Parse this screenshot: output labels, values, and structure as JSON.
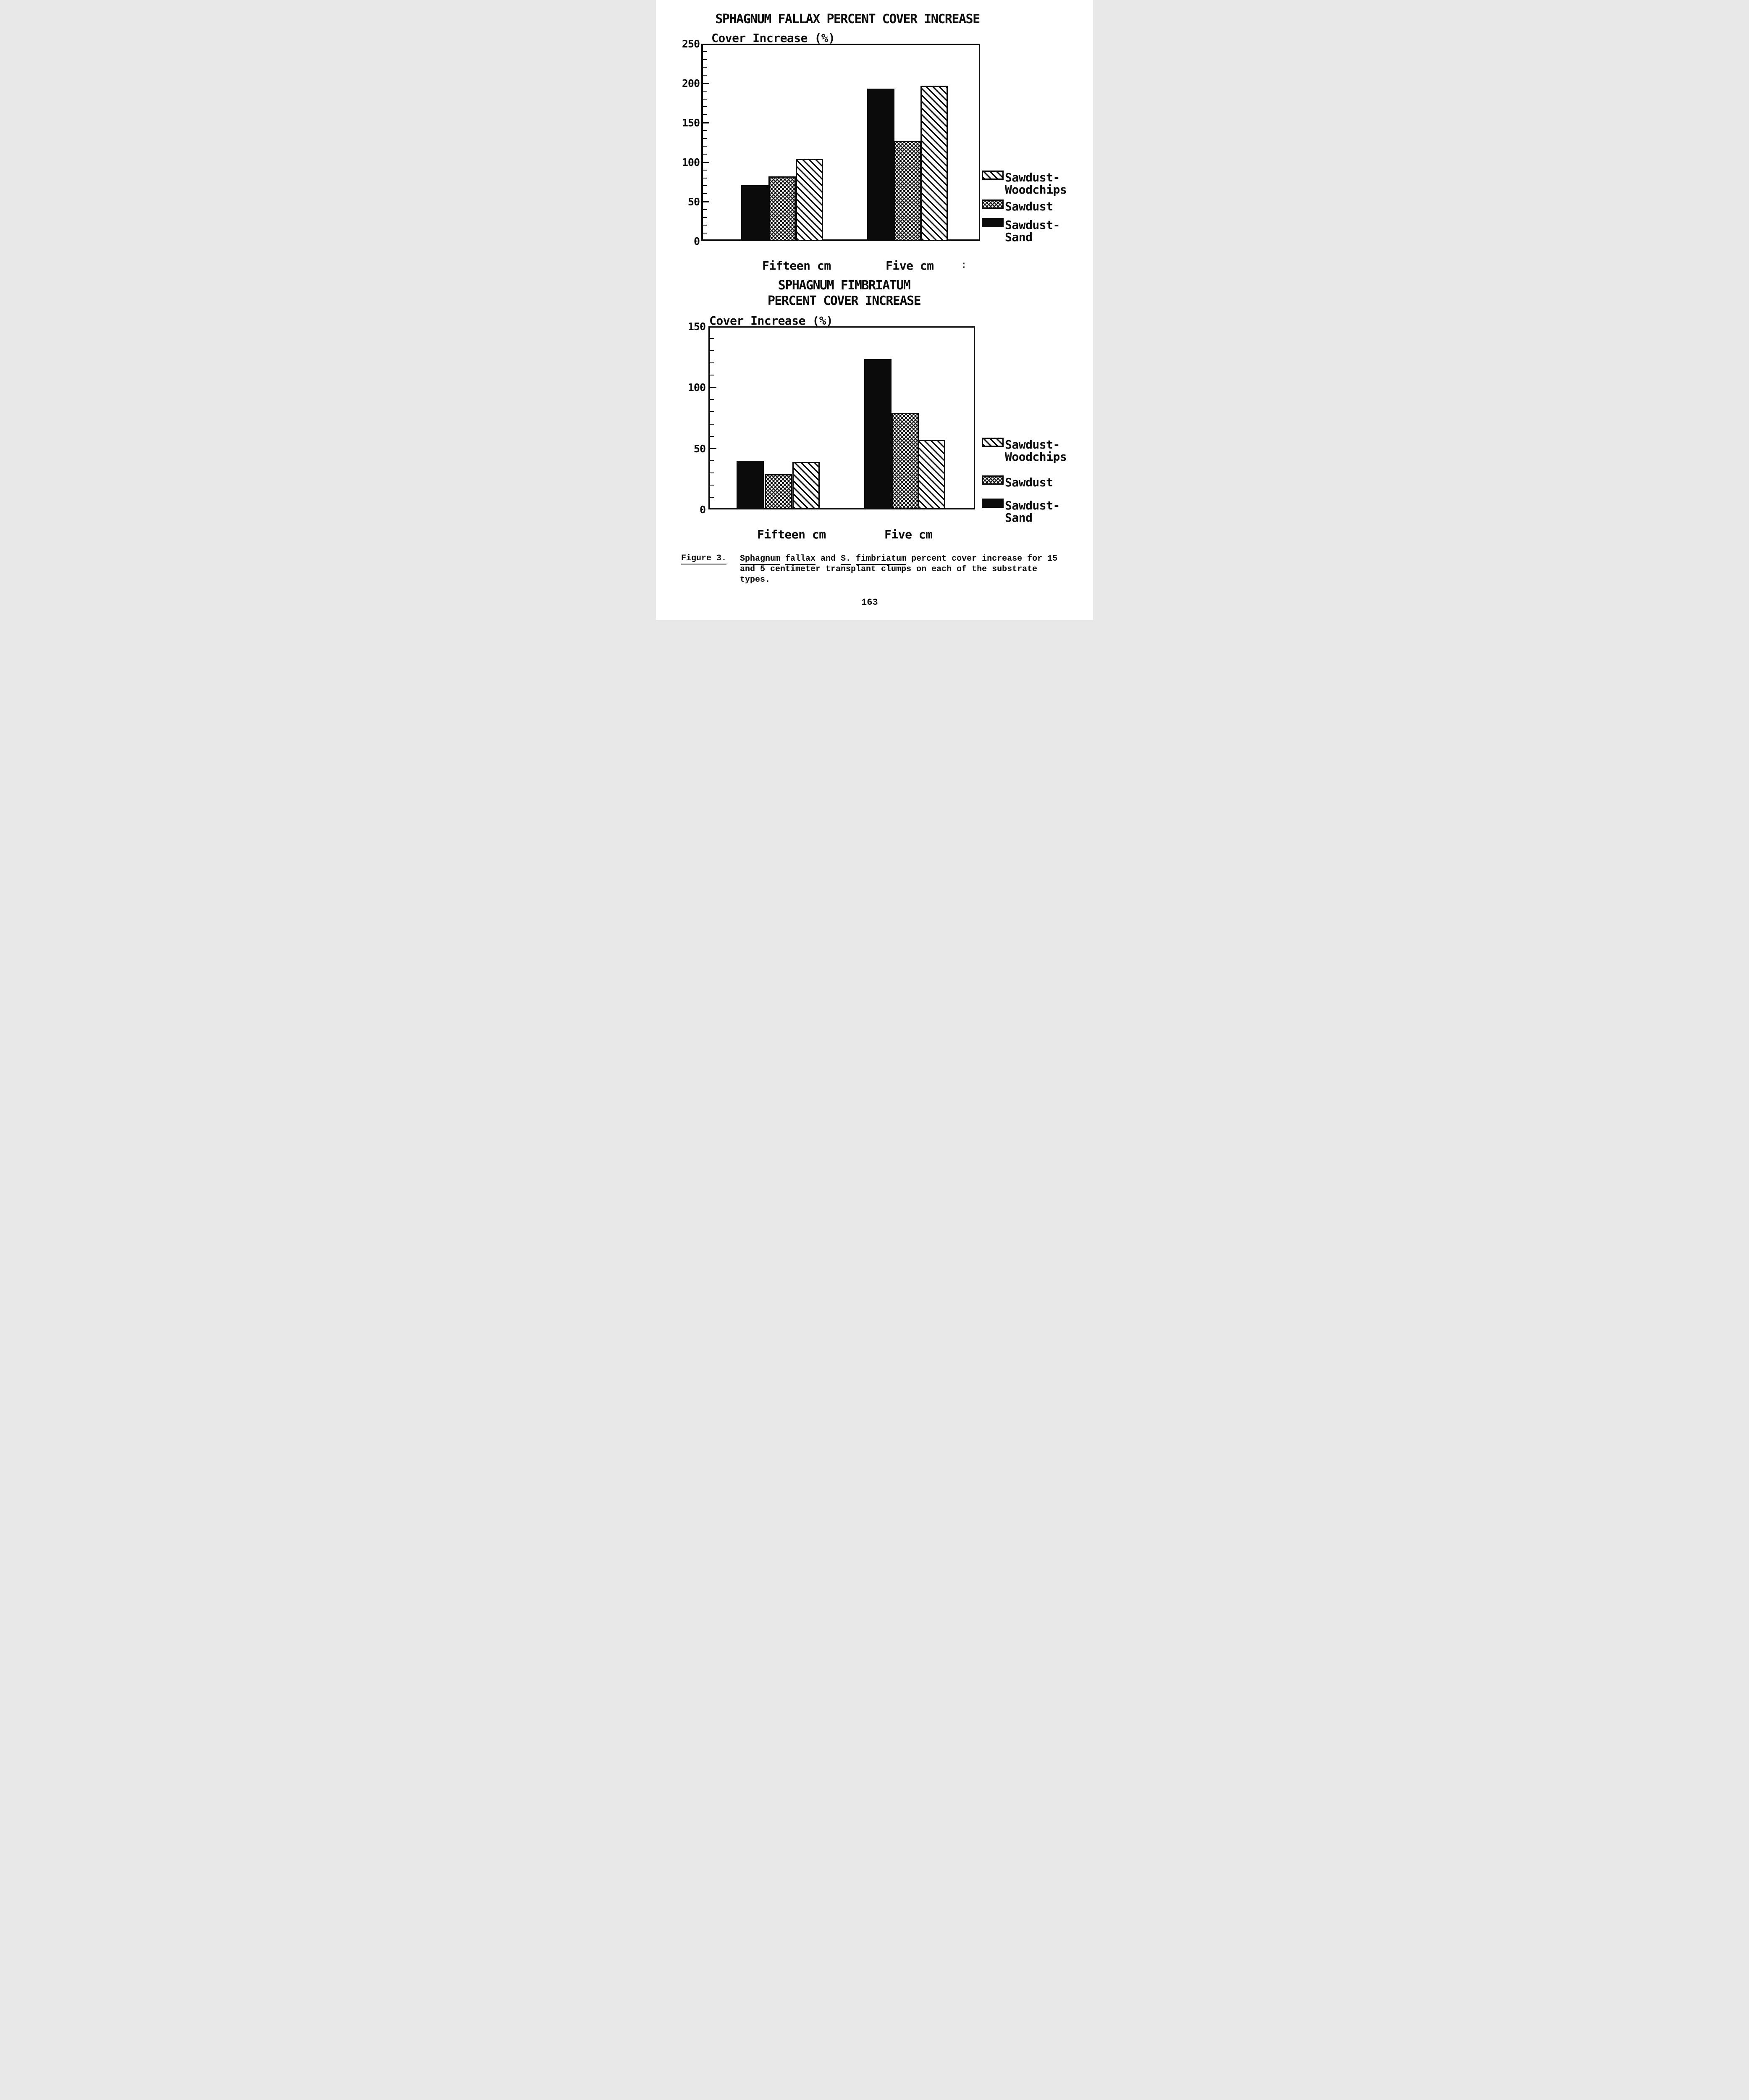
{
  "page": {
    "number": "163",
    "ink_color": "#0b0b0b",
    "paper_color": "#ffffff"
  },
  "chart_data": [
    {
      "id": "sphagnum-fallax",
      "type": "bar",
      "title_lines": [
        "SPHAGNUM FALLAX PERCENT COVER INCREASE"
      ],
      "ylabel": "Cover Increase (%)",
      "xlabel": "",
      "ylim": [
        0,
        250
      ],
      "y_major_ticks": [
        0,
        50,
        100,
        150,
        200,
        250
      ],
      "y_minor_step": 10,
      "grid": false,
      "legend_position": "right",
      "categories": [
        "Fifteen cm",
        "Five cm"
      ],
      "series": [
        {
          "name": "Sawdust-Sand",
          "pattern": "solid",
          "values": [
            71,
            193
          ]
        },
        {
          "name": "Sawdust",
          "pattern": "crosshatch",
          "values": [
            82,
            127
          ]
        },
        {
          "name": "Sawdust-Woodchips",
          "pattern": "diagonal",
          "values": [
            104,
            197
          ]
        }
      ],
      "stray_mark": ":"
    },
    {
      "id": "sphagnum-fimbriatum",
      "type": "bar",
      "title_lines": [
        "SPHAGNUM FIMBRIATUM",
        "PERCENT COVER INCREASE"
      ],
      "ylabel": "Cover Increase (%)",
      "xlabel": "",
      "ylim": [
        0,
        150
      ],
      "y_major_ticks": [
        0,
        50,
        100,
        150
      ],
      "y_minor_step": 10,
      "grid": false,
      "legend_position": "right",
      "categories": [
        "Fifteen cm",
        "Five cm"
      ],
      "series": [
        {
          "name": "Sawdust-Sand",
          "pattern": "solid",
          "values": [
            40,
            123
          ]
        },
        {
          "name": "Sawdust",
          "pattern": "crosshatch",
          "values": [
            29,
            79
          ]
        },
        {
          "name": "Sawdust-Woodchips",
          "pattern": "diagonal",
          "values": [
            39,
            57
          ]
        }
      ]
    }
  ],
  "legend": {
    "items": [
      {
        "label_lines": [
          "Sawdust-",
          "Woodchips"
        ],
        "pattern": "diagonal"
      },
      {
        "label_lines": [
          "Sawdust"
        ],
        "pattern": "crosshatch"
      },
      {
        "label_lines": [
          "Sawdust-",
          "Sand"
        ],
        "pattern": "solid"
      }
    ]
  },
  "caption": {
    "label": "Figure 3.",
    "lines": [
      [
        {
          "t": "Sphagnum",
          "u": true
        },
        {
          "t": " "
        },
        {
          "t": "fallax",
          "u": true
        },
        {
          "t": " and "
        },
        {
          "t": "S.",
          "u": true
        },
        {
          "t": " "
        },
        {
          "t": "fimbriatum",
          "u": true
        },
        {
          "t": " percent cover increase for 15"
        }
      ],
      [
        {
          "t": "and 5 centimeter transplant clumps on each of the substrate"
        }
      ],
      [
        {
          "t": "types."
        }
      ]
    ]
  }
}
